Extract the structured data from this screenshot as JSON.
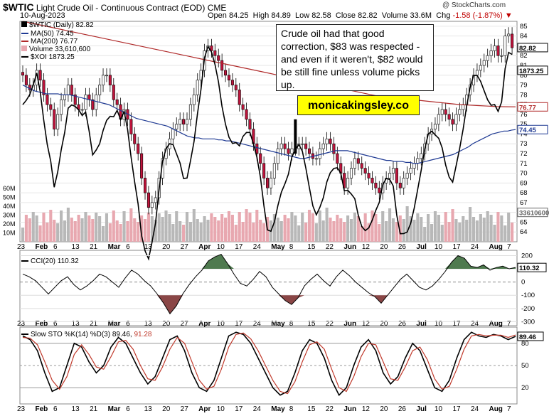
{
  "header": {
    "symbol": "$WTIC",
    "name": "Light Crude Oil - Continuous Contract (EOD)",
    "exchange": "CME",
    "date": "10-Aug-2023",
    "open_label": "Open",
    "open": "84.25",
    "high_label": "High",
    "high": "84.89",
    "low_label": "Low",
    "low": "82.58",
    "close_label": "Close",
    "close": "82.82",
    "volume_label": "Volume",
    "volume": "33.6M",
    "chg_label": "Chg",
    "chg": "-1.58 (-1.87%)",
    "credit": "@ StockCharts.com"
  },
  "legend": {
    "price": "$WTIC (Daily) 82.82",
    "ma50": "MA(50) 74.45",
    "ma200": "MA(200) 76.77",
    "volume": "Volume 33,610,600",
    "xoi": "$XOI 1873.25"
  },
  "annotation": {
    "note": "Crude oil had that good correction, $83 was respected - and even if it weren't, $82 would be still fine unless volume picks up.",
    "brand": "monicakingsley.co"
  },
  "colors": {
    "up": "#ffffff",
    "down": "#c0143c",
    "ma50": "#1f3a93",
    "ma200": "#b02a2a",
    "vol_up": "#b8b8b8",
    "vol_down": "#e8a8b0",
    "cci_fill_pos": "#4f7a4f",
    "cci_fill_neg": "#8a4646",
    "sto_k": "#000000",
    "sto_d": "#c0392b"
  },
  "chart_data": [
    {
      "type": "candlestick",
      "title": "$WTIC (Daily)",
      "x_tick_labels": [
        "23",
        "Feb",
        "6",
        "13",
        "21",
        "Mar",
        "6",
        "13",
        "20",
        "27",
        "Apr",
        "10",
        "17",
        "24",
        "May",
        "8",
        "15",
        "22",
        "Jun",
        "12",
        "20",
        "26",
        "Jul",
        "10",
        "17",
        "24",
        "Aug",
        "7"
      ],
      "ylim": [
        63,
        85.5
      ],
      "y_ticks": [
        64,
        65,
        66,
        67,
        68,
        69,
        70,
        71,
        72,
        73,
        74,
        75,
        76,
        77,
        78,
        79,
        80,
        81,
        82,
        83,
        84,
        85
      ],
      "volume_ticks": [
        "10M",
        "20M",
        "30M",
        "40M",
        "50M",
        "60M"
      ],
      "last_labels": {
        "close": "82.82",
        "xoi": "1873.25",
        "ma200": "76.77",
        "ma50": "74.45",
        "volume": "33610600"
      },
      "close": [
        80,
        79,
        78.5,
        79,
        80.5,
        79.5,
        78,
        77,
        76.5,
        74.5,
        76,
        77.5,
        78,
        79,
        78,
        77,
        76.5,
        76.5,
        78,
        77.5,
        76.5,
        78,
        79,
        80,
        80,
        79,
        77.5,
        77,
        75.5,
        76.5,
        75.5,
        74,
        73,
        72,
        69.5,
        68,
        66.5,
        67,
        67.5,
        69.5,
        71.5,
        72.5,
        73.5,
        74.5,
        75,
        75.5,
        75,
        75.5,
        77,
        78,
        79.5,
        80.5,
        82.5,
        83,
        82.5,
        82,
        81.5,
        80.5,
        80,
        79.5,
        79,
        78.5,
        77,
        76.5,
        75.5,
        74.5,
        73,
        72,
        71,
        69.5,
        68.5,
        69.5,
        71,
        72.5,
        73,
        72.5,
        72,
        72.5,
        72.5,
        73,
        73,
        72.5,
        72,
        71.5,
        71.5,
        72.5,
        73,
        73.5,
        73,
        72,
        71,
        70,
        68.5,
        69.5,
        70.5,
        71.5,
        71,
        70.5,
        70,
        69.5,
        69,
        68.5,
        68,
        69,
        69.5,
        70,
        70.5,
        69,
        68.5,
        69.5,
        70,
        70.5,
        71,
        71.5,
        72,
        73,
        74,
        74.5,
        75,
        76,
        76.5,
        76,
        75.5,
        75,
        76,
        76.5,
        77,
        78,
        79,
        80,
        80.5,
        81,
        81.5,
        82,
        82.5,
        83,
        82,
        82,
        84,
        84.2,
        82.8
      ],
      "ma50": [
        79,
        78.8,
        78.6,
        78.4,
        78.3,
        78.2,
        78.1,
        78.1,
        78.1,
        78.1,
        78,
        78,
        78,
        77.9,
        77.8,
        77.7,
        77.6,
        77.5,
        77.4,
        77.3,
        77.2,
        77.1,
        77,
        76.8,
        76.6,
        76.4,
        76.2,
        76,
        75.8,
        75.6,
        75.5,
        75.4,
        75.3,
        75.2,
        75.1,
        75,
        74.9,
        74.8,
        74.6,
        74.4,
        74.2,
        74,
        73.8,
        73.7,
        73.6,
        73.6,
        73.5,
        73.5,
        73.5,
        73.5,
        73.4,
        73.4,
        73.3,
        73.3,
        73.2,
        73.1,
        73,
        72.9,
        72.8,
        72.7,
        72.6,
        72.5,
        72.4,
        72.3,
        72.2,
        72.1,
        72,
        71.9,
        71.8,
        71.7,
        71.6,
        71.5,
        71.5,
        71.6,
        71.7,
        71.8,
        71.9,
        72,
        72.1,
        72.2,
        72.3,
        72.3,
        72.3,
        72.3,
        72.2,
        72.1,
        72,
        71.9,
        71.8,
        71.7,
        71.6,
        71.5,
        71.4,
        71.3,
        71.3,
        71.2,
        71.2,
        71.2,
        71.1,
        71.1,
        71,
        71,
        71.1,
        71.2,
        71.3,
        71.4,
        71.5,
        71.6,
        71.7,
        71.8,
        71.9,
        72.1,
        72.3,
        72.5,
        72.7,
        73,
        73.2,
        73.4,
        73.6,
        73.8,
        74,
        74.1,
        74.2,
        74.3,
        74.3,
        74.4,
        74.45
      ],
      "ma200": [
        85.5,
        85.3,
        85.1,
        84.9,
        84.7,
        84.5,
        84.3,
        84.1,
        83.9,
        83.7,
        83.5,
        83.3,
        83.1,
        82.9,
        82.7,
        82.5,
        82.3,
        82.1,
        81.9,
        81.7,
        81.5,
        81.3,
        81.1,
        80.9,
        80.7,
        80.5,
        80.3,
        80.1,
        79.9,
        79.7,
        79.5,
        79.3,
        79.1,
        78.9,
        78.7,
        78.5,
        78.3,
        78.1,
        77.9,
        77.8,
        77.7,
        77.6,
        77.5,
        77.4,
        77.3,
        77.2,
        77.1,
        77,
        76.95,
        76.9,
        76.85,
        76.8,
        76.78,
        76.77
      ]
    },
    {
      "type": "line",
      "title": "CCI(20)",
      "last_value": "110.32",
      "ylim": [
        -330,
        240
      ],
      "y_ticks": [
        200,
        100,
        0,
        -100,
        -200,
        -300
      ],
      "values": [
        60,
        40,
        10,
        -40,
        -90,
        -40,
        10,
        40,
        -20,
        -60,
        -30,
        10,
        60,
        40,
        0,
        -40,
        30,
        90,
        60,
        10,
        -30,
        -90,
        -160,
        -240,
        -180,
        -90,
        -20,
        40,
        90,
        160,
        190,
        210,
        140,
        60,
        -10,
        -30,
        20,
        80,
        40,
        -40,
        -90,
        -140,
        -170,
        -120,
        -30,
        20,
        60,
        10,
        -30,
        40,
        90,
        50,
        0,
        -40,
        -80,
        -110,
        -160,
        -100,
        -40,
        20,
        60,
        10,
        -40,
        -60,
        -30,
        20,
        80,
        150,
        200,
        180,
        120,
        110,
        130,
        90,
        110,
        120,
        100,
        110
      ]
    },
    {
      "type": "line",
      "title": "Slow STO %K(14) %D(3)",
      "series": [
        {
          "name": "%K(14)",
          "values": [
            90,
            85,
            70,
            40,
            15,
            20,
            50,
            80,
            75,
            55,
            40,
            50,
            75,
            88,
            80,
            60,
            40,
            25,
            35,
            60,
            85,
            90,
            70,
            40,
            20,
            15,
            30,
            60,
            90,
            95,
            92,
            80,
            60,
            40,
            20,
            10,
            15,
            40,
            70,
            85,
            80,
            60,
            30,
            10,
            20,
            50,
            75,
            85,
            70,
            40,
            25,
            35,
            60,
            80,
            70,
            45,
            20,
            15,
            30,
            60,
            85,
            95,
            90,
            88,
            92,
            90,
            85,
            89.46
          ]
        },
        {
          "name": "%D(3)",
          "values": [
            88,
            87,
            78,
            55,
            30,
            18,
            35,
            65,
            78,
            65,
            48,
            45,
            62,
            82,
            84,
            72,
            50,
            32,
            30,
            48,
            72,
            88,
            80,
            55,
            30,
            18,
            22,
            45,
            75,
            92,
            94,
            86,
            70,
            50,
            30,
            15,
            12,
            28,
            55,
            78,
            82,
            72,
            45,
            20,
            15,
            35,
            62,
            80,
            78,
            55,
            32,
            30,
            48,
            70,
            75,
            58,
            32,
            18,
            22,
            45,
            72,
            90,
            92,
            90,
            91,
            91,
            88,
            91.28
          ]
        }
      ],
      "ylim": [
        0,
        100
      ],
      "y_ticks": [
        80,
        50,
        20
      ],
      "last_values": [
        "89.46"
      ]
    }
  ]
}
